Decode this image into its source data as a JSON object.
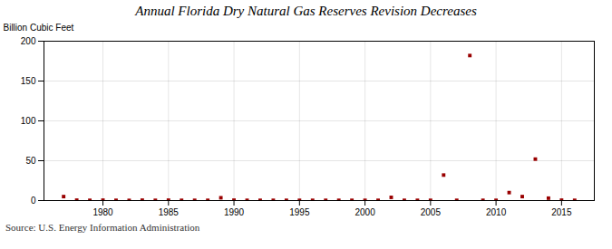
{
  "chart_data": {
    "type": "scatter",
    "title": "Annual Florida Dry Natural Gas Reserves Revision Decreases",
    "y_label": "Billion Cubic Feet",
    "annotations": [
      "Source: U.S. Energy Information Administration"
    ],
    "x": [
      1977,
      1978,
      1979,
      1980,
      1981,
      1982,
      1983,
      1984,
      1985,
      1986,
      1987,
      1988,
      1989,
      1990,
      1991,
      1992,
      1993,
      1994,
      1995,
      1996,
      1997,
      1998,
      1999,
      2000,
      2001,
      2002,
      2003,
      2004,
      2005,
      2006,
      2007,
      2008,
      2009,
      2010,
      2011,
      2012,
      2013,
      2014,
      2015,
      2016
    ],
    "values": [
      5.0,
      0.5,
      0.3,
      0.5,
      0.3,
      0.2,
      0.5,
      0.3,
      0.5,
      0.3,
      0.3,
      0.3,
      3.5,
      0.5,
      0.3,
      0.3,
      0.3,
      0.3,
      0.3,
      0.3,
      0.3,
      0.3,
      0.3,
      0.3,
      0.3,
      4.0,
      0.3,
      0.3,
      0.3,
      32.0,
      0.3,
      182.0,
      0.3,
      0.3,
      10.0,
      5.0,
      52.0,
      3.0,
      0.5,
      0.3
    ],
    "color": "#990000",
    "marker": "square",
    "xlim": [
      1975.5,
      2017.5
    ],
    "ylim": [
      0,
      200
    ],
    "xticks": [
      1980,
      1985,
      1990,
      1995,
      2000,
      2005,
      2010,
      2015
    ],
    "yticks": [
      0,
      50,
      100,
      150,
      200
    ],
    "grid": true
  }
}
